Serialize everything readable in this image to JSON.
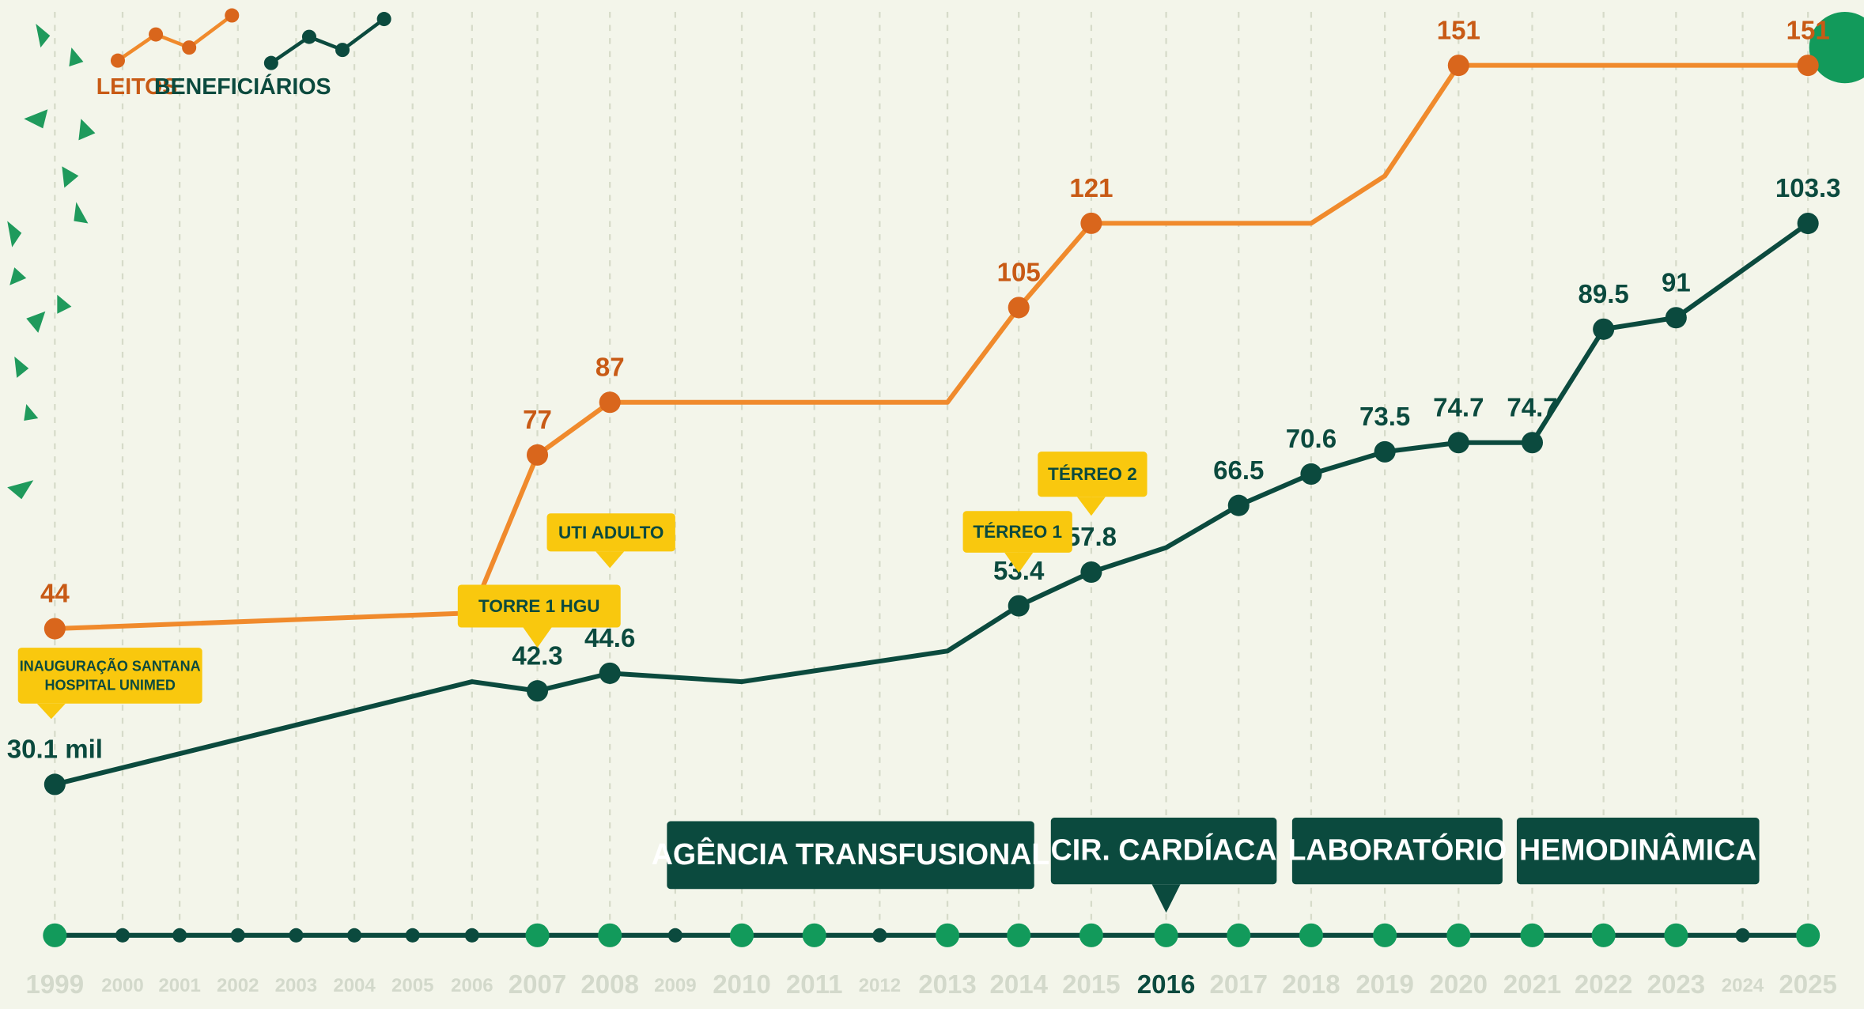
{
  "chart_data": {
    "type": "line",
    "categories": [
      "1999",
      "2000",
      "2001",
      "2002",
      "2003",
      "2004",
      "2005",
      "2006",
      "2007",
      "2008",
      "2009",
      "2010",
      "2011",
      "2012",
      "2013",
      "2014",
      "2015",
      "2016",
      "2017",
      "2018",
      "2019",
      "2020",
      "2021",
      "2022",
      "2023",
      "2024",
      "2025"
    ],
    "highlighted": [
      "1999",
      "2007",
      "2008",
      "2010",
      "2011",
      "2013",
      "2014",
      "2015",
      "2016",
      "2017",
      "2018",
      "2019",
      "2020",
      "2021",
      "2022",
      "2023",
      "2025"
    ],
    "current": "2016",
    "series": [
      {
        "name": "LEITOS",
        "color": "#f08a2c",
        "x": [
          "1999",
          "2006",
          "2007",
          "2008",
          "2013",
          "2014",
          "2015",
          "2018",
          "2019",
          "2020",
          "2025"
        ],
        "values": [
          44,
          47,
          77,
          87,
          87,
          105,
          121,
          121,
          130,
          151,
          151
        ],
        "value_labels": [
          "44",
          null,
          "77",
          "87",
          null,
          "105",
          "121",
          null,
          null,
          "151",
          "151"
        ]
      },
      {
        "name": "BENEFICIÁRIOS",
        "color": "#0b4a3e",
        "x": [
          "1999",
          "2006",
          "2007",
          "2008",
          "2010",
          "2013",
          "2014",
          "2015",
          "2016",
          "2017",
          "2018",
          "2019",
          "2020",
          "2021",
          "2022",
          "2023",
          "2025"
        ],
        "values": [
          30.1,
          43.5,
          42.3,
          44.6,
          43.5,
          47.5,
          53.4,
          57.8,
          61,
          66.5,
          70.6,
          73.5,
          74.7,
          74.7,
          89.5,
          91,
          103.3
        ],
        "value_labels": [
          "30.1 mil",
          null,
          "42.3",
          "44.6",
          null,
          null,
          "53.4",
          "57.8",
          null,
          "66.5",
          "70.6",
          "73.5",
          "74.7",
          "74.7",
          "89.5",
          "91",
          "103.3"
        ]
      }
    ],
    "annotations": [
      {
        "lines": [
          "INAUGURAÇÃO SANTANA",
          "HOSPITAL UNIMED"
        ]
      },
      {
        "lines": [
          "TORRE 1 HGU"
        ]
      },
      {
        "lines": [
          "UTI ADULTO"
        ]
      },
      {
        "lines": [
          "TÉRREO 1"
        ]
      },
      {
        "lines": [
          "TÉRREO 2"
        ]
      },
      {
        "lines": [
          "AGÊNCIA TRANSFUSIONAL"
        ]
      },
      {
        "lines": [
          "CIR. CARDÍACA"
        ]
      },
      {
        "lines": [
          "LABORATÓRIO"
        ]
      },
      {
        "lines": [
          "HEMODINÂMICA"
        ]
      }
    ]
  }
}
